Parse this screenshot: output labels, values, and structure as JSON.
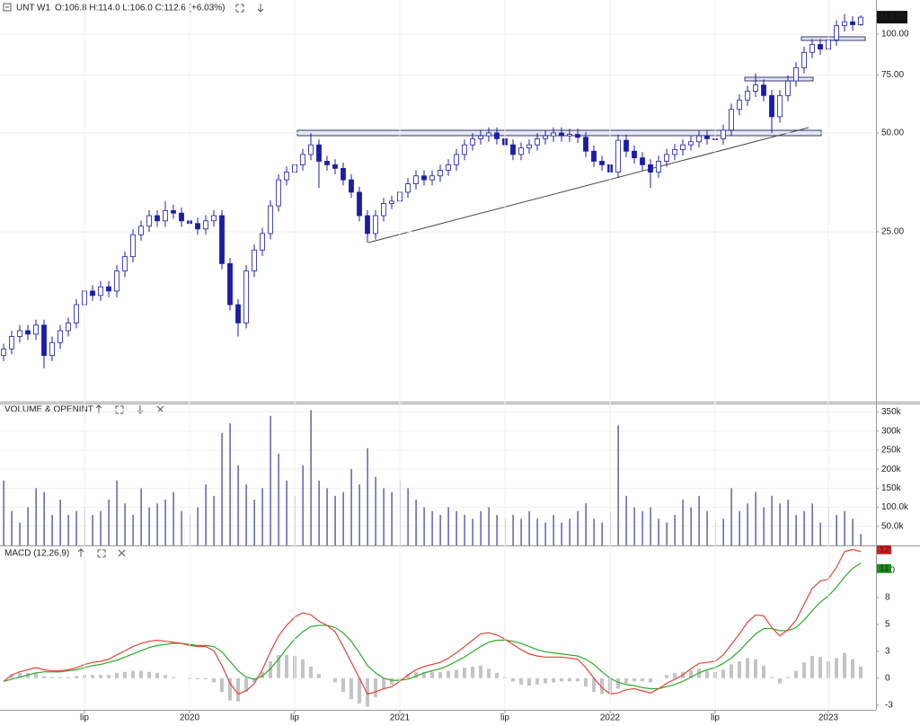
{
  "header": {
    "symbol": "UNT",
    "timeframe": "W1",
    "quote": "O:106.8 H:114.0 L:106.0 C:112.6 (+6.03%)"
  },
  "chart_data": [
    {
      "type": "candlestick",
      "last_label": "112.60",
      "up_color": "#ffffff",
      "down_color": "#1c1ca8",
      "log_scale": true,
      "grid": true,
      "ylim": [
        7.6,
        127
      ],
      "yticks": [
        {
          "value": 25,
          "label": "25.00"
        },
        {
          "value": 50,
          "label": "50.00"
        },
        {
          "value": 75,
          "label": "75.00"
        },
        {
          "value": 100,
          "label": "100.00"
        }
      ],
      "open": [
        10.5,
        11.0,
        12.0,
        12.5,
        12.2,
        13.0,
        10.5,
        11.5,
        12.5,
        13.2,
        15.0,
        16.5,
        16.0,
        17.0,
        16.5,
        19.0,
        21.0,
        24.5,
        26.0,
        28.0,
        27.0,
        29.0,
        28.5,
        27.0,
        26.5,
        25.5,
        27.0,
        28.0,
        20.0,
        15.0,
        13.2,
        19.0,
        22.0,
        24.7,
        30.0,
        36.0,
        38.0,
        40.0,
        43.0,
        46.0,
        41.0,
        40.0,
        39.0,
        36.0,
        33.0,
        28.0,
        24.7,
        28.0,
        30.5,
        31.0,
        33.0,
        35.0,
        37.0,
        36.0,
        37.0,
        38.5,
        40.0,
        43.0,
        46.0,
        48.0,
        49.0,
        50.0,
        48.0,
        46.0,
        43.0,
        45.0,
        46.0,
        48.0,
        49.0,
        50.0,
        49.0,
        49.5,
        48.5,
        44.0,
        41.0,
        40.0,
        38.0,
        47.5,
        44.0,
        42.0,
        40.0,
        38.0,
        41.0,
        43.0,
        44.5,
        46.0,
        47.0,
        49.0,
        48.0,
        48.0,
        51.0,
        59.0,
        63.0,
        67.0,
        70.0,
        65.0,
        56.0,
        65.0,
        72.0,
        79.0,
        88.0,
        93.0,
        90.0,
        96.0,
        106.0,
        109.0,
        106.8
      ],
      "high": [
        11.4,
        12.5,
        13.0,
        13.0,
        13.5,
        13.5,
        12.0,
        13.0,
        13.7,
        15.6,
        17.2,
        17.2,
        17.7,
        17.7,
        19.8,
        21.8,
        25.5,
        27.0,
        29.1,
        29.1,
        31.0,
        30.2,
        29.6,
        28.1,
        27.6,
        28.1,
        29.1,
        29.1,
        20.8,
        15.6,
        19.8,
        22.9,
        25.7,
        31.2,
        37.4,
        39.5,
        41.6,
        44.7,
        50.0,
        47.8,
        42.6,
        41.6,
        40.6,
        37.4,
        34.3,
        29.1,
        29.1,
        31.7,
        32.2,
        34.3,
        36.4,
        38.5,
        38.5,
        38.5,
        40.0,
        41.6,
        44.7,
        47.8,
        49.9,
        51.0,
        52.0,
        52.0,
        49.9,
        47.8,
        46.8,
        47.8,
        49.9,
        51.0,
        52.0,
        52.0,
        51.5,
        51.5,
        50.4,
        45.8,
        42.6,
        41.6,
        49.4,
        49.4,
        45.8,
        43.7,
        41.6,
        42.6,
        44.7,
        46.3,
        47.8,
        48.9,
        51.0,
        51.0,
        49.9,
        53.0,
        61.4,
        65.5,
        69.7,
        76.0,
        72.8,
        67.6,
        67.6,
        74.9,
        82.2,
        91.5,
        96.7,
        96.7,
        99.8,
        110.2,
        115.0,
        113.4,
        114.0
      ],
      "low": [
        10.1,
        10.6,
        11.5,
        11.7,
        11.7,
        9.6,
        10.1,
        11.0,
        12.0,
        12.7,
        14.4,
        15.4,
        15.4,
        15.8,
        15.8,
        18.2,
        20.2,
        23.5,
        25.0,
        25.9,
        25.9,
        27.4,
        25.9,
        25.4,
        24.5,
        24.5,
        25.9,
        19.2,
        14.4,
        12.0,
        12.7,
        18.2,
        21.1,
        23.7,
        28.8,
        34.6,
        36.5,
        38.4,
        41.3,
        34.0,
        38.4,
        37.4,
        34.6,
        31.7,
        26.9,
        23.2,
        23.7,
        26.9,
        29.3,
        29.8,
        31.7,
        33.6,
        34.6,
        34.6,
        35.5,
        37.0,
        38.4,
        41.3,
        44.2,
        46.1,
        47.0,
        46.1,
        44.2,
        41.3,
        41.3,
        43.2,
        44.2,
        46.1,
        47.0,
        47.0,
        47.0,
        46.6,
        42.2,
        39.4,
        38.4,
        36.5,
        36.5,
        42.2,
        40.3,
        38.4,
        34.0,
        36.5,
        39.4,
        41.3,
        42.7,
        44.2,
        45.1,
        46.1,
        46.1,
        46.1,
        49.0,
        56.6,
        60.5,
        64.3,
        62.4,
        50.0,
        53.8,
        62.4,
        69.1,
        75.8,
        84.5,
        86.4,
        86.4,
        92.2,
        101.8,
        102.5,
        106.0
      ],
      "close": [
        11.0,
        12.0,
        12.5,
        12.2,
        13.0,
        10.5,
        11.5,
        12.5,
        13.2,
        15.0,
        16.5,
        16.0,
        17.0,
        16.5,
        19.0,
        21.0,
        24.5,
        26.0,
        28.0,
        27.0,
        29.0,
        28.5,
        27.0,
        26.5,
        25.5,
        27.0,
        28.0,
        20.0,
        15.0,
        13.2,
        19.0,
        22.0,
        24.7,
        30.0,
        36.0,
        38.0,
        40.0,
        43.0,
        46.0,
        41.0,
        40.0,
        39.0,
        36.0,
        33.0,
        28.0,
        24.7,
        28.0,
        30.5,
        31.0,
        33.0,
        35.0,
        37.0,
        36.0,
        37.0,
        38.5,
        40.0,
        43.0,
        46.0,
        48.0,
        49.0,
        50.0,
        48.0,
        46.0,
        43.0,
        45.0,
        46.0,
        48.0,
        49.0,
        50.0,
        49.0,
        49.5,
        48.5,
        44.0,
        41.0,
        40.0,
        38.0,
        47.5,
        44.0,
        42.0,
        40.0,
        38.0,
        41.0,
        43.0,
        44.5,
        46.0,
        47.0,
        49.0,
        48.0,
        48.0,
        51.0,
        59.0,
        63.0,
        67.0,
        70.0,
        65.0,
        56.0,
        65.0,
        72.0,
        79.0,
        88.0,
        93.0,
        90.0,
        96.0,
        106.0,
        109.0,
        106.8,
        112.6
      ]
    },
    {
      "type": "bar",
      "title": "VOLUME & OPENINT",
      "color": "#3a3a9a",
      "grid": true,
      "ylim": [
        0,
        370000
      ],
      "yticks": [
        {
          "value": 50000,
          "label": "50.0k"
        },
        {
          "value": 100000,
          "label": "100.0k"
        },
        {
          "value": 150000,
          "label": "150k"
        },
        {
          "value": 200000,
          "label": "200k"
        },
        {
          "value": 250000,
          "label": "250k"
        },
        {
          "value": 300000,
          "label": "300k"
        },
        {
          "value": 350000,
          "label": "350k"
        }
      ],
      "values": [
        170000,
        90000,
        60000,
        100000,
        150000,
        140000,
        80000,
        120000,
        80000,
        90000,
        100000,
        80000,
        90000,
        120000,
        170000,
        110000,
        80000,
        150000,
        100000,
        110000,
        120000,
        140000,
        90000,
        80000,
        100000,
        160000,
        130000,
        295000,
        320000,
        210000,
        160000,
        120000,
        150000,
        340000,
        240000,
        170000,
        130000,
        210000,
        355000,
        170000,
        150000,
        130000,
        140000,
        200000,
        160000,
        255000,
        180000,
        150000,
        140000,
        170000,
        150000,
        120000,
        100000,
        90000,
        80000,
        100000,
        90000,
        80000,
        70000,
        90000,
        100000,
        80000,
        70000,
        80000,
        70000,
        90000,
        70000,
        60000,
        80000,
        60000,
        70000,
        90000,
        110000,
        70000,
        60000,
        90000,
        315000,
        130000,
        100000,
        90000,
        100000,
        70000,
        60000,
        80000,
        120000,
        100000,
        130000,
        90000,
        60000,
        70000,
        150000,
        90000,
        110000,
        140000,
        100000,
        130000,
        110000,
        120000,
        80000,
        90000,
        110000,
        60000,
        100000,
        80000,
        90000,
        70000,
        30000
      ]
    },
    {
      "type": "macd",
      "title": "MACD (12,26,9)",
      "ylim": [
        -3,
        12.5
      ],
      "yticks": [
        {
          "value": -2.55,
          "label": "-3"
        },
        0,
        {
          "value": 2.55,
          "label": "3"
        },
        {
          "value": 5.1,
          "label": "5"
        },
        {
          "value": 7.65,
          "label": "8"
        },
        {
          "value": 10.2,
          "label": "10"
        }
      ],
      "categories": [
        null,
        null,
        null,
        null,
        null,
        null,
        null,
        null,
        null,
        null,
        "lip",
        null,
        null,
        null,
        null,
        null,
        null,
        null,
        null,
        null,
        null,
        null,
        null,
        "2020",
        null,
        null,
        null,
        null,
        null,
        null,
        null,
        null,
        null,
        null,
        null,
        null,
        "lip",
        null,
        null,
        null,
        null,
        null,
        null,
        null,
        null,
        null,
        null,
        null,
        null,
        "2021",
        null,
        null,
        null,
        null,
        null,
        null,
        null,
        null,
        null,
        null,
        null,
        null,
        "lip",
        null,
        null,
        null,
        null,
        null,
        null,
        null,
        null,
        null,
        null,
        null,
        null,
        "2022",
        null,
        null,
        null,
        null,
        null,
        null,
        null,
        null,
        null,
        null,
        null,
        null,
        "lip",
        null,
        null,
        null,
        null,
        null,
        null,
        null,
        null,
        null,
        null,
        null,
        null,
        null,
        "2023",
        null,
        null,
        null,
        null
      ],
      "series": [
        {
          "color": "#e0443c",
          "last_label": "12",
          "values": [
            -0.3,
            0.3,
            0.6,
            0.8,
            1.0,
            0.8,
            0.7,
            0.7,
            0.8,
            1.0,
            1.3,
            1.5,
            1.6,
            1.8,
            2.2,
            2.6,
            3.0,
            3.3,
            3.5,
            3.6,
            3.5,
            3.4,
            3.3,
            3.1,
            3.0,
            3.0,
            2.6,
            1.2,
            -0.5,
            -1.5,
            -1.2,
            -0.5,
            0.8,
            2.5,
            4.0,
            5.0,
            5.8,
            6.2,
            6.0,
            5.4,
            5.0,
            4.4,
            3.0,
            1.5,
            0.0,
            -1.5,
            -1.3,
            -1.0,
            -0.8,
            -0.3,
            0.3,
            0.8,
            1.1,
            1.3,
            1.5,
            1.9,
            2.4,
            3.0,
            3.6,
            4.2,
            4.3,
            4.1,
            3.7,
            3.2,
            2.7,
            2.3,
            2.1,
            2.0,
            2.0,
            2.0,
            1.9,
            1.8,
            1.0,
            0.0,
            -0.9,
            -1.5,
            -1.4,
            -1.1,
            -1.0,
            -1.2,
            -1.4,
            -1.0,
            -0.5,
            -0.1,
            0.3,
            0.9,
            1.4,
            1.5,
            1.6,
            2.2,
            3.2,
            4.2,
            5.3,
            6.0,
            5.9,
            4.8,
            4.0,
            4.6,
            5.5,
            7.0,
            8.5,
            9.2,
            9.4,
            10.5,
            12.0,
            12.2,
            12.0
          ]
        },
        {
          "color": "#2ea82e",
          "last_label": "11",
          "values": [
            -0.3,
            -0.1,
            0.1,
            0.3,
            0.5,
            0.6,
            0.6,
            0.6,
            0.7,
            0.8,
            1.0,
            1.2,
            1.3,
            1.5,
            1.7,
            2.0,
            2.3,
            2.6,
            2.9,
            3.1,
            3.2,
            3.3,
            3.3,
            3.2,
            3.1,
            3.1,
            3.0,
            2.5,
            1.6,
            0.7,
            0.1,
            -0.1,
            0.2,
            0.9,
            1.8,
            2.8,
            3.7,
            4.4,
            4.9,
            5.0,
            5.0,
            4.8,
            4.3,
            3.5,
            2.4,
            1.2,
            0.5,
            0.0,
            -0.2,
            -0.2,
            -0.1,
            0.2,
            0.5,
            0.7,
            0.9,
            1.2,
            1.6,
            2.0,
            2.5,
            3.0,
            3.4,
            3.6,
            3.6,
            3.5,
            3.3,
            3.0,
            2.7,
            2.5,
            2.4,
            2.3,
            2.2,
            2.1,
            1.8,
            1.3,
            0.6,
            0.0,
            -0.4,
            -0.6,
            -0.7,
            -0.9,
            -1.0,
            -1.0,
            -0.8,
            -0.6,
            -0.3,
            0.1,
            0.5,
            0.8,
            1.0,
            1.4,
            1.9,
            2.6,
            3.4,
            4.2,
            4.7,
            4.7,
            4.5,
            4.5,
            4.8,
            5.5,
            6.4,
            7.2,
            7.8,
            8.6,
            9.6,
            10.4,
            10.9
          ]
        }
      ],
      "histogram": {
        "color": "#c4c4c4",
        "values": [
          0.0,
          0.4,
          0.5,
          0.5,
          0.5,
          0.2,
          0.1,
          0.1,
          0.1,
          0.2,
          0.3,
          0.3,
          0.3,
          0.3,
          0.5,
          0.6,
          0.7,
          0.7,
          0.6,
          0.5,
          0.3,
          0.1,
          0.0,
          -0.1,
          -0.1,
          -0.1,
          -0.4,
          -1.3,
          -2.1,
          -2.2,
          -1.3,
          -0.4,
          0.6,
          1.6,
          2.2,
          2.2,
          2.1,
          1.8,
          1.1,
          0.4,
          0.0,
          -0.4,
          -1.3,
          -2.0,
          -2.4,
          -2.7,
          -1.8,
          -1.0,
          -0.6,
          -0.1,
          0.4,
          0.6,
          0.6,
          0.6,
          0.6,
          0.7,
          0.8,
          1.0,
          1.1,
          1.2,
          0.9,
          0.5,
          0.1,
          -0.3,
          -0.6,
          -0.7,
          -0.6,
          -0.5,
          -0.4,
          -0.3,
          -0.3,
          -0.3,
          -0.8,
          -1.3,
          -1.5,
          -1.5,
          -1.0,
          -0.5,
          -0.3,
          -0.3,
          -0.4,
          0.0,
          0.3,
          0.5,
          0.6,
          0.8,
          0.9,
          0.7,
          0.6,
          0.8,
          1.3,
          1.6,
          1.9,
          1.8,
          1.2,
          0.1,
          -0.5,
          0.1,
          0.7,
          1.5,
          2.1,
          2.0,
          1.6,
          1.9,
          2.4,
          1.8,
          1.1
        ]
      }
    }
  ]
}
